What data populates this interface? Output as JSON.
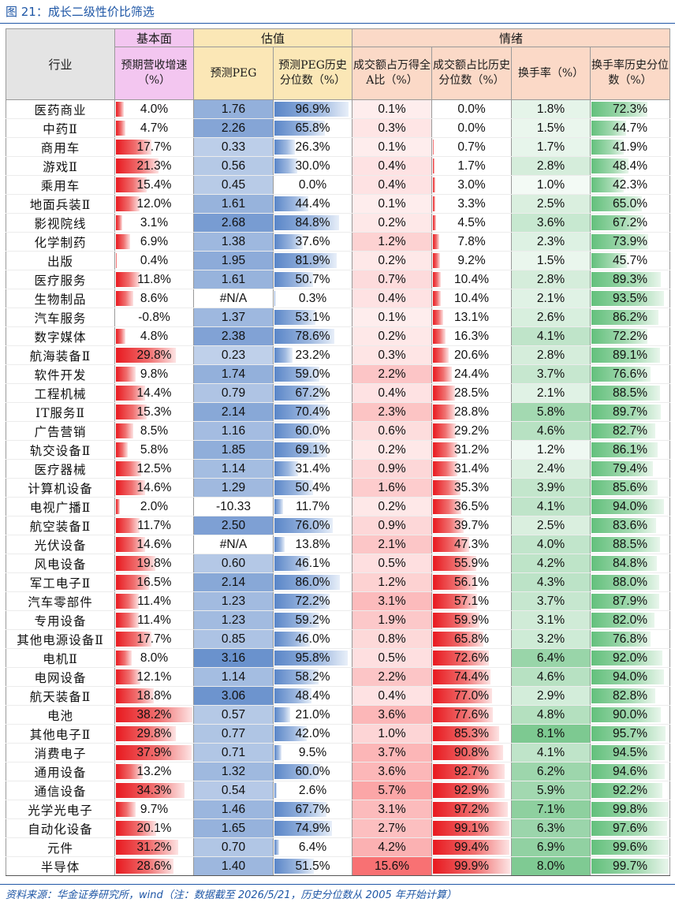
{
  "title": "图 21：成长二级性价比筛选",
  "footer": "资料来源：华金证券研究所，wind（注：数据截至 2026/5/21，历史分位数从 2005 年开始计算）",
  "header": {
    "industry": "行业",
    "group_basic": "基本面",
    "group_valuation": "估值",
    "group_sentiment": "情绪",
    "col_growth": "预期营收增速（%）",
    "col_peg": "预测PEG",
    "col_peg_pct": "预测PEG历史分位数（%）",
    "col_turnover_share": "成交额占万得全A比（%）",
    "col_turnover_share_pct": "成交额占比历史分位数（%）",
    "col_turnover_rate": "换手率（%）",
    "col_turnover_rate_pct": "换手率历史分位数（%）"
  },
  "colors": {
    "header_basic": "#f3c6f0",
    "header_valuation": "#fbe7b6",
    "header_sentiment": "#fbd9c7",
    "header_industry": "#e4e4e4",
    "bar_red": "#e8191f",
    "bar_blue": "#5a86c8",
    "bar_green": "#63c07c",
    "heat_red": "#f8696b",
    "title_blue": "#1f57a6"
  },
  "rows": [
    {
      "ind": "医药商业",
      "g": "4.0%",
      "peg": "1.76",
      "pp": "96.9%",
      "ts": "0.1%",
      "tsp": "0.0%",
      "tr": "1.8%",
      "trp": "72.3%"
    },
    {
      "ind": "中药Ⅱ",
      "g": "4.7%",
      "peg": "2.26",
      "pp": "65.8%",
      "ts": "0.3%",
      "tsp": "0.0%",
      "tr": "1.5%",
      "trp": "44.7%"
    },
    {
      "ind": "商用车",
      "g": "17.7%",
      "peg": "0.33",
      "pp": "26.3%",
      "ts": "0.1%",
      "tsp": "0.7%",
      "tr": "1.7%",
      "trp": "41.9%"
    },
    {
      "ind": "游戏Ⅱ",
      "g": "21.3%",
      "peg": "0.56",
      "pp": "30.0%",
      "ts": "0.4%",
      "tsp": "1.7%",
      "tr": "2.8%",
      "trp": "48.4%"
    },
    {
      "ind": "乘用车",
      "g": "15.4%",
      "peg": "0.45",
      "pp": "0.0%",
      "ts": "0.4%",
      "tsp": "3.0%",
      "tr": "1.0%",
      "trp": "42.3%"
    },
    {
      "ind": "地面兵装Ⅱ",
      "g": "12.0%",
      "peg": "1.61",
      "pp": "44.4%",
      "ts": "0.1%",
      "tsp": "3.3%",
      "tr": "2.5%",
      "trp": "65.0%"
    },
    {
      "ind": "影视院线",
      "g": "3.1%",
      "peg": "2.68",
      "pp": "84.8%",
      "ts": "0.2%",
      "tsp": "4.5%",
      "tr": "3.6%",
      "trp": "67.2%"
    },
    {
      "ind": "化学制药",
      "g": "6.9%",
      "peg": "1.38",
      "pp": "37.6%",
      "ts": "1.2%",
      "tsp": "7.8%",
      "tr": "2.3%",
      "trp": "73.9%"
    },
    {
      "ind": "出版",
      "g": "0.4%",
      "peg": "1.95",
      "pp": "81.9%",
      "ts": "0.2%",
      "tsp": "9.2%",
      "tr": "1.5%",
      "trp": "45.7%"
    },
    {
      "ind": "医疗服务",
      "g": "11.8%",
      "peg": "1.61",
      "pp": "50.7%",
      "ts": "0.7%",
      "tsp": "10.4%",
      "tr": "2.8%",
      "trp": "89.3%"
    },
    {
      "ind": "生物制品",
      "g": "8.6%",
      "peg": "#N/A",
      "pp": "0.3%",
      "ts": "0.4%",
      "tsp": "10.4%",
      "tr": "2.1%",
      "trp": "93.5%"
    },
    {
      "ind": "汽车服务",
      "g": "-0.8%",
      "peg": "1.37",
      "pp": "53.1%",
      "ts": "0.1%",
      "tsp": "13.1%",
      "tr": "2.6%",
      "trp": "86.2%"
    },
    {
      "ind": "数字媒体",
      "g": "4.8%",
      "peg": "2.38",
      "pp": "78.6%",
      "ts": "0.2%",
      "tsp": "16.3%",
      "tr": "4.1%",
      "trp": "72.2%"
    },
    {
      "ind": "航海装备Ⅱ",
      "g": "29.8%",
      "peg": "0.23",
      "pp": "23.2%",
      "ts": "0.3%",
      "tsp": "20.6%",
      "tr": "2.8%",
      "trp": "89.1%"
    },
    {
      "ind": "软件开发",
      "g": "9.8%",
      "peg": "1.74",
      "pp": "59.0%",
      "ts": "2.2%",
      "tsp": "24.4%",
      "tr": "3.7%",
      "trp": "76.6%"
    },
    {
      "ind": "工程机械",
      "g": "14.4%",
      "peg": "0.79",
      "pp": "67.2%",
      "ts": "0.4%",
      "tsp": "28.5%",
      "tr": "2.1%",
      "trp": "88.5%"
    },
    {
      "ind": "IT服务Ⅱ",
      "g": "15.3%",
      "peg": "2.14",
      "pp": "70.4%",
      "ts": "2.3%",
      "tsp": "28.8%",
      "tr": "5.8%",
      "trp": "89.7%"
    },
    {
      "ind": "广告营销",
      "g": "8.5%",
      "peg": "1.16",
      "pp": "60.0%",
      "ts": "0.6%",
      "tsp": "29.2%",
      "tr": "4.6%",
      "trp": "82.7%"
    },
    {
      "ind": "轨交设备Ⅱ",
      "g": "5.8%",
      "peg": "1.85",
      "pp": "69.1%",
      "ts": "0.2%",
      "tsp": "31.2%",
      "tr": "1.2%",
      "trp": "86.1%"
    },
    {
      "ind": "医疗器械",
      "g": "12.5%",
      "peg": "1.14",
      "pp": "31.4%",
      "ts": "0.9%",
      "tsp": "31.4%",
      "tr": "2.4%",
      "trp": "79.4%"
    },
    {
      "ind": "计算机设备",
      "g": "14.6%",
      "peg": "1.29",
      "pp": "50.4%",
      "ts": "1.6%",
      "tsp": "35.3%",
      "tr": "3.9%",
      "trp": "85.6%"
    },
    {
      "ind": "电视广播Ⅱ",
      "g": "2.0%",
      "peg": "-10.33",
      "pp": "11.7%",
      "ts": "0.2%",
      "tsp": "36.5%",
      "tr": "4.1%",
      "trp": "94.0%"
    },
    {
      "ind": "航空装备Ⅱ",
      "g": "11.7%",
      "peg": "2.50",
      "pp": "76.0%",
      "ts": "0.9%",
      "tsp": "39.7%",
      "tr": "2.5%",
      "trp": "83.6%"
    },
    {
      "ind": "光伏设备",
      "g": "14.6%",
      "peg": "#N/A",
      "pp": "13.8%",
      "ts": "2.1%",
      "tsp": "47.3%",
      "tr": "4.0%",
      "trp": "88.5%"
    },
    {
      "ind": "风电设备",
      "g": "19.8%",
      "peg": "0.60",
      "pp": "46.1%",
      "ts": "0.5%",
      "tsp": "55.9%",
      "tr": "4.2%",
      "trp": "84.8%"
    },
    {
      "ind": "军工电子Ⅱ",
      "g": "16.5%",
      "peg": "2.14",
      "pp": "86.0%",
      "ts": "1.2%",
      "tsp": "56.1%",
      "tr": "4.3%",
      "trp": "88.0%"
    },
    {
      "ind": "汽车零部件",
      "g": "11.4%",
      "peg": "1.23",
      "pp": "72.2%",
      "ts": "3.1%",
      "tsp": "57.1%",
      "tr": "3.7%",
      "trp": "87.9%"
    },
    {
      "ind": "专用设备",
      "g": "11.4%",
      "peg": "1.23",
      "pp": "59.2%",
      "ts": "1.9%",
      "tsp": "59.9%",
      "tr": "3.1%",
      "trp": "82.0%"
    },
    {
      "ind": "其他电源设备Ⅱ",
      "g": "17.7%",
      "peg": "0.85",
      "pp": "46.0%",
      "ts": "0.8%",
      "tsp": "65.8%",
      "tr": "3.2%",
      "trp": "76.8%"
    },
    {
      "ind": "电机Ⅱ",
      "g": "8.0%",
      "peg": "3.16",
      "pp": "95.8%",
      "ts": "0.5%",
      "tsp": "72.6%",
      "tr": "6.4%",
      "trp": "92.0%"
    },
    {
      "ind": "电网设备",
      "g": "12.1%",
      "peg": "1.14",
      "pp": "58.2%",
      "ts": "2.2%",
      "tsp": "74.4%",
      "tr": "4.6%",
      "trp": "94.0%"
    },
    {
      "ind": "航天装备Ⅱ",
      "g": "18.8%",
      "peg": "3.06",
      "pp": "48.4%",
      "ts": "0.4%",
      "tsp": "77.0%",
      "tr": "2.9%",
      "trp": "82.8%"
    },
    {
      "ind": "电池",
      "g": "38.2%",
      "peg": "0.57",
      "pp": "21.0%",
      "ts": "3.6%",
      "tsp": "77.6%",
      "tr": "4.8%",
      "trp": "90.0%"
    },
    {
      "ind": "其他电子Ⅱ",
      "g": "29.8%",
      "peg": "0.77",
      "pp": "42.0%",
      "ts": "1.0%",
      "tsp": "85.3%",
      "tr": "8.1%",
      "trp": "95.7%"
    },
    {
      "ind": "消费电子",
      "g": "37.9%",
      "peg": "0.71",
      "pp": "9.5%",
      "ts": "3.7%",
      "tsp": "90.8%",
      "tr": "4.1%",
      "trp": "94.5%"
    },
    {
      "ind": "通用设备",
      "g": "13.2%",
      "peg": "1.32",
      "pp": "60.0%",
      "ts": "3.6%",
      "tsp": "92.7%",
      "tr": "6.2%",
      "trp": "94.6%"
    },
    {
      "ind": "通信设备",
      "g": "34.3%",
      "peg": "0.54",
      "pp": "2.6%",
      "ts": "5.7%",
      "tsp": "92.9%",
      "tr": "5.9%",
      "trp": "92.2%"
    },
    {
      "ind": "光学光电子",
      "g": "9.7%",
      "peg": "1.46",
      "pp": "67.7%",
      "ts": "3.1%",
      "tsp": "97.2%",
      "tr": "7.1%",
      "trp": "99.8%"
    },
    {
      "ind": "自动化设备",
      "g": "20.1%",
      "peg": "1.65",
      "pp": "74.9%",
      "ts": "2.7%",
      "tsp": "99.1%",
      "tr": "6.3%",
      "trp": "97.6%"
    },
    {
      "ind": "元件",
      "g": "31.2%",
      "peg": "0.70",
      "pp": "6.4%",
      "ts": "4.2%",
      "tsp": "99.4%",
      "tr": "6.9%",
      "trp": "99.6%"
    },
    {
      "ind": "半导体",
      "g": "28.6%",
      "peg": "1.40",
      "pp": "51.5%",
      "ts": "15.6%",
      "tsp": "99.9%",
      "tr": "8.0%",
      "trp": "99.7%"
    }
  ]
}
